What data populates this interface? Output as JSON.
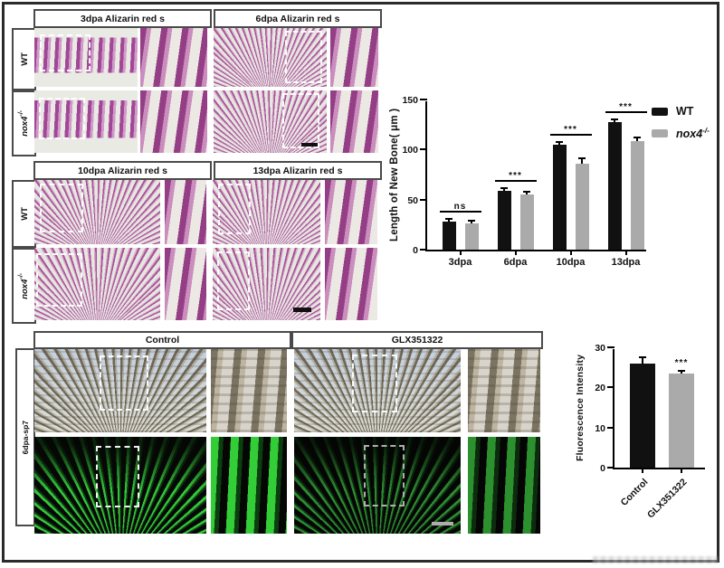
{
  "panel_top": {
    "groups": [
      {
        "header": "3dpa Alizarin red s"
      },
      {
        "header": "6dpa Alizarin red s"
      }
    ],
    "row_labels": [
      {
        "base": "WT",
        "sup": ""
      },
      {
        "base": "nox4",
        "sup": "-/-"
      }
    ]
  },
  "panel_mid": {
    "groups": [
      {
        "header": "10dpa Alizarin red s"
      },
      {
        "header": "13dpa Alizarin red s"
      }
    ],
    "row_labels": [
      {
        "base": "WT",
        "sup": ""
      },
      {
        "base": "nox4",
        "sup": "-/-"
      }
    ]
  },
  "panel_bottom": {
    "headers": [
      "Control",
      "GLX351322"
    ],
    "row_label": "6dpa-sp7"
  },
  "colors": {
    "wt_bar": "#111111",
    "mutant_bar": "#aaaaaa",
    "alizarin_pink": "#b0579b",
    "fluorescence_green": "#2bd32b"
  },
  "chart_data": [
    {
      "type": "bar",
      "title": "",
      "categories": [
        "3dpa",
        "6dpa",
        "10dpa",
        "13dpa"
      ],
      "series": [
        {
          "name": "WT",
          "name_sup": "",
          "color": "#111111",
          "values": [
            28,
            59,
            105,
            127
          ],
          "errors": [
            1.5,
            1.5,
            2,
            2
          ]
        },
        {
          "name": "nox4",
          "name_sup": "-/-",
          "color": "#aaaaaa",
          "values": [
            26,
            55,
            86,
            108
          ],
          "errors": [
            1.5,
            1,
            4,
            3
          ]
        }
      ],
      "significance": [
        "ns",
        "***",
        "***",
        "***"
      ],
      "ylabel": "Length of  New Bone( μm )",
      "xlabel": "",
      "ylim": [
        0,
        150
      ],
      "yticks": [
        0,
        50,
        100,
        150
      ],
      "legend_position": "right",
      "grid": false
    },
    {
      "type": "bar",
      "title": "",
      "categories": [
        "Control",
        "GLX351322"
      ],
      "values": [
        26,
        23.5
      ],
      "errors": [
        1.4,
        0.5
      ],
      "colors": [
        "#111111",
        "#aaaaaa"
      ],
      "significance": [
        "",
        "***"
      ],
      "ylabel": "Fluorescence Intensity",
      "xlabel": "",
      "ylim": [
        0,
        30
      ],
      "yticks": [
        0,
        10,
        20,
        30
      ],
      "grid": false
    }
  ]
}
